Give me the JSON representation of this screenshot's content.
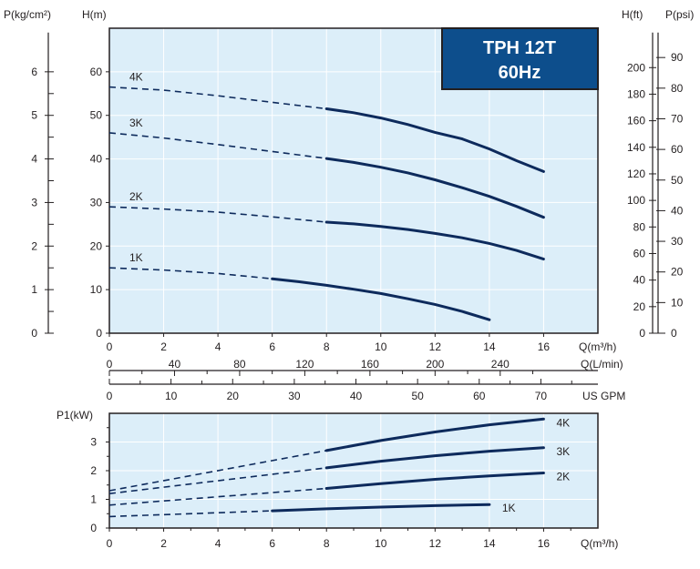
{
  "title_box": {
    "model": "TPH 12T",
    "frequency": "60Hz",
    "fill": "#0d4e8c"
  },
  "colors": {
    "plot_bg": "#dceef9",
    "grid": "#ffffff",
    "curve": "#0d2a5c",
    "axis": "#231f20"
  },
  "chart_data": [
    {
      "type": "line",
      "name": "head-curves",
      "xlabel": "Q(m³/h)",
      "ylabel": "H(m)",
      "xlim": [
        0,
        18
      ],
      "ylim": [
        0,
        70
      ],
      "x_ticks": [
        "0",
        "2",
        "4",
        "6",
        "8",
        "10",
        "12",
        "14",
        "16"
      ],
      "y_ticks": [
        "0",
        "10",
        "20",
        "30",
        "40",
        "50",
        "60"
      ],
      "left_axis": {
        "label": "P(kg/cm²)",
        "ticks": [
          "0",
          "1",
          "2",
          "3",
          "4",
          "5",
          "6"
        ]
      },
      "right_axis_ft": {
        "label": "H(ft)",
        "ticks": [
          "0",
          "20",
          "40",
          "60",
          "80",
          "100",
          "120",
          "140",
          "160",
          "180",
          "200"
        ]
      },
      "right_axis_psi": {
        "label": "P(psi)",
        "ticks": [
          "0",
          "10",
          "20",
          "30",
          "40",
          "50",
          "60",
          "70",
          "80",
          "90"
        ]
      },
      "flow_axis_lmin": {
        "label": "Q(L/min)",
        "ticks": [
          "0",
          "40",
          "80",
          "120",
          "160",
          "200",
          "240"
        ]
      },
      "flow_axis_gpm": {
        "label": "US GPM",
        "ticks": [
          "0",
          "10",
          "20",
          "30",
          "40",
          "50",
          "60",
          "70"
        ]
      },
      "series": [
        {
          "name": "4K",
          "dashed": {
            "x": [
              0,
              2,
              4,
              6,
              8
            ],
            "y": [
              56.5,
              55.8,
              54.5,
              53.0,
              51.5
            ]
          },
          "solid": {
            "x": [
              8,
              9,
              10,
              11,
              12,
              13,
              14,
              15,
              16
            ],
            "y": [
              51.5,
              50.6,
              49.4,
              47.9,
              46.1,
              44.6,
              42.3,
              39.6,
              37.1
            ]
          }
        },
        {
          "name": "3K",
          "dashed": {
            "x": [
              0,
              2,
              4,
              6,
              8
            ],
            "y": [
              46.0,
              44.8,
              43.3,
              41.7,
              40.1
            ]
          },
          "solid": {
            "x": [
              8,
              9,
              10,
              11,
              12,
              13,
              14,
              15,
              16
            ],
            "y": [
              40.1,
              39.2,
              38.1,
              36.8,
              35.2,
              33.4,
              31.4,
              29.1,
              26.6
            ]
          }
        },
        {
          "name": "2K",
          "dashed": {
            "x": [
              0,
              2,
              4,
              6,
              8
            ],
            "y": [
              29.0,
              28.5,
              27.8,
              26.7,
              25.5
            ]
          },
          "solid": {
            "x": [
              8,
              9,
              10,
              11,
              12,
              13,
              14,
              15,
              16
            ],
            "y": [
              25.5,
              25.1,
              24.5,
              23.8,
              22.9,
              21.9,
              20.6,
              19.0,
              17.0
            ]
          }
        },
        {
          "name": "1K",
          "dashed": {
            "x": [
              0,
              2,
              4,
              6
            ],
            "y": [
              15.0,
              14.5,
              13.7,
              12.5
            ]
          },
          "solid": {
            "x": [
              6,
              7,
              8,
              9,
              10,
              11,
              12,
              13,
              14
            ],
            "y": [
              12.5,
              11.8,
              11.0,
              10.1,
              9.1,
              7.9,
              6.6,
              5.0,
              3.1
            ]
          }
        }
      ]
    },
    {
      "type": "line",
      "name": "power-curves",
      "xlabel": "Q(m³/h)",
      "ylabel": "P1(kW)",
      "xlim": [
        0,
        18
      ],
      "ylim": [
        0,
        4
      ],
      "x_ticks": [
        "0",
        "2",
        "4",
        "6",
        "8",
        "10",
        "12",
        "14",
        "16"
      ],
      "y_ticks": [
        "0",
        "1",
        "2",
        "3"
      ],
      "series": [
        {
          "name": "4K",
          "dashed": {
            "x": [
              0,
              8
            ],
            "y": [
              1.3,
              2.7
            ]
          },
          "solid": {
            "x": [
              8,
              10,
              12,
              14,
              16
            ],
            "y": [
              2.7,
              3.05,
              3.35,
              3.6,
              3.8
            ]
          }
        },
        {
          "name": "3K",
          "dashed": {
            "x": [
              0,
              8
            ],
            "y": [
              1.2,
              2.1
            ]
          },
          "solid": {
            "x": [
              8,
              10,
              12,
              14,
              16
            ],
            "y": [
              2.1,
              2.33,
              2.52,
              2.68,
              2.8
            ]
          }
        },
        {
          "name": "2K",
          "dashed": {
            "x": [
              0,
              8
            ],
            "y": [
              0.8,
              1.38
            ]
          },
          "solid": {
            "x": [
              8,
              10,
              12,
              14,
              16
            ],
            "y": [
              1.38,
              1.55,
              1.7,
              1.82,
              1.92
            ]
          }
        },
        {
          "name": "1K",
          "dashed": {
            "x": [
              0,
              6
            ],
            "y": [
              0.4,
              0.6
            ]
          },
          "solid": {
            "x": [
              6,
              8,
              10,
              12,
              14
            ],
            "y": [
              0.6,
              0.67,
              0.73,
              0.78,
              0.82
            ]
          }
        }
      ]
    }
  ]
}
